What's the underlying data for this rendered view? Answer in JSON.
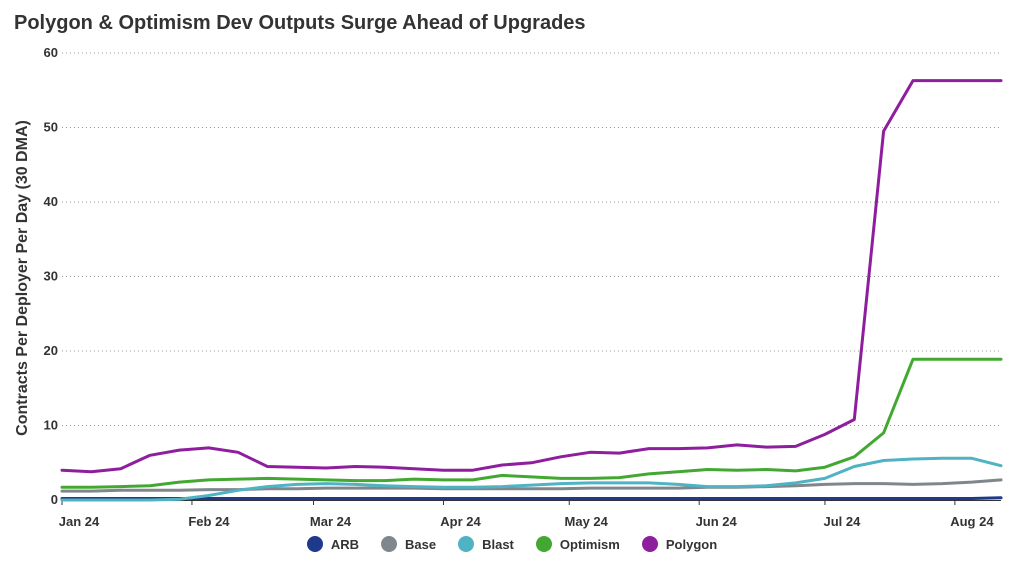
{
  "chart_data": {
    "type": "line",
    "title": "Polygon & Optimism Dev Outputs Surge Ahead of Upgrades",
    "xlabel": "",
    "ylabel": "Contracts Per Deployer Per Day (30 DMA)",
    "ylim": [
      0,
      60
    ],
    "yticks": [
      0,
      10,
      20,
      30,
      40,
      50,
      60
    ],
    "xticks": [
      "Jan 24",
      "Feb 24",
      "Mar 24",
      "Apr 24",
      "May 24",
      "Jun 24",
      "Jul 24",
      "Aug 24"
    ],
    "x": [
      "2024-01-01",
      "2024-01-08",
      "2024-01-15",
      "2024-01-22",
      "2024-01-29",
      "2024-02-05",
      "2024-02-12",
      "2024-02-19",
      "2024-02-26",
      "2024-03-04",
      "2024-03-11",
      "2024-03-18",
      "2024-03-25",
      "2024-04-01",
      "2024-04-08",
      "2024-04-15",
      "2024-04-22",
      "2024-04-29",
      "2024-05-06",
      "2024-05-13",
      "2024-05-20",
      "2024-05-27",
      "2024-06-03",
      "2024-06-10",
      "2024-06-17",
      "2024-06-24",
      "2024-07-01",
      "2024-07-08",
      "2024-07-15",
      "2024-07-22",
      "2024-07-29",
      "2024-08-05",
      "2024-08-12"
    ],
    "grid": "horizontal dotted",
    "legend_position": "bottom",
    "series": [
      {
        "name": "ARB",
        "color": "#1f3a8a",
        "values": [
          0.2,
          0.2,
          0.2,
          0.2,
          0.2,
          0.2,
          0.2,
          0.2,
          0.2,
          0.2,
          0.2,
          0.2,
          0.2,
          0.2,
          0.2,
          0.2,
          0.2,
          0.2,
          0.2,
          0.2,
          0.2,
          0.2,
          0.2,
          0.2,
          0.2,
          0.2,
          0.2,
          0.2,
          0.2,
          0.2,
          0.2,
          0.2,
          0.3
        ]
      },
      {
        "name": "Base",
        "color": "#7f868c",
        "values": [
          1.2,
          1.2,
          1.3,
          1.3,
          1.3,
          1.4,
          1.4,
          1.5,
          1.5,
          1.6,
          1.6,
          1.6,
          1.6,
          1.5,
          1.5,
          1.5,
          1.5,
          1.5,
          1.6,
          1.6,
          1.6,
          1.6,
          1.7,
          1.7,
          1.8,
          1.9,
          2.1,
          2.2,
          2.2,
          2.1,
          2.2,
          2.4,
          2.7
        ]
      },
      {
        "name": "Blast",
        "color": "#4fb3c4",
        "values": [
          0,
          0,
          0,
          0,
          0.1,
          0.6,
          1.3,
          1.8,
          2.1,
          2.2,
          2.1,
          1.9,
          1.8,
          1.7,
          1.7,
          1.8,
          2.0,
          2.2,
          2.3,
          2.3,
          2.3,
          2.1,
          1.8,
          1.8,
          1.9,
          2.3,
          2.9,
          4.5,
          5.3,
          5.5,
          5.6,
          5.6,
          4.6
        ]
      },
      {
        "name": "Optimism",
        "color": "#43a832",
        "values": [
          1.7,
          1.7,
          1.8,
          1.9,
          2.4,
          2.7,
          2.8,
          2.9,
          2.8,
          2.7,
          2.6,
          2.6,
          2.8,
          2.7,
          2.7,
          3.3,
          3.1,
          2.9,
          2.9,
          3.0,
          3.5,
          3.8,
          4.1,
          4.0,
          4.1,
          3.9,
          4.4,
          5.8,
          9.0,
          18.9,
          18.9,
          18.9,
          18.9
        ]
      },
      {
        "name": "Polygon",
        "color": "#8e1e9e",
        "values": [
          4.0,
          3.8,
          4.2,
          6.0,
          6.7,
          7.0,
          6.4,
          4.5,
          4.4,
          4.3,
          4.5,
          4.4,
          4.2,
          4.0,
          4.0,
          4.7,
          5.0,
          5.8,
          6.4,
          6.3,
          6.9,
          6.9,
          7.0,
          7.4,
          7.1,
          7.2,
          8.8,
          10.8,
          49.5,
          56.3,
          56.3,
          56.3,
          56.3
        ]
      }
    ]
  },
  "legend": {
    "items": [
      {
        "label": "ARB",
        "color": "#1f3a8a"
      },
      {
        "label": "Base",
        "color": "#7f868c"
      },
      {
        "label": "Blast",
        "color": "#4fb3c4"
      },
      {
        "label": "Optimism",
        "color": "#43a832"
      },
      {
        "label": "Polygon",
        "color": "#8e1e9e"
      }
    ]
  }
}
